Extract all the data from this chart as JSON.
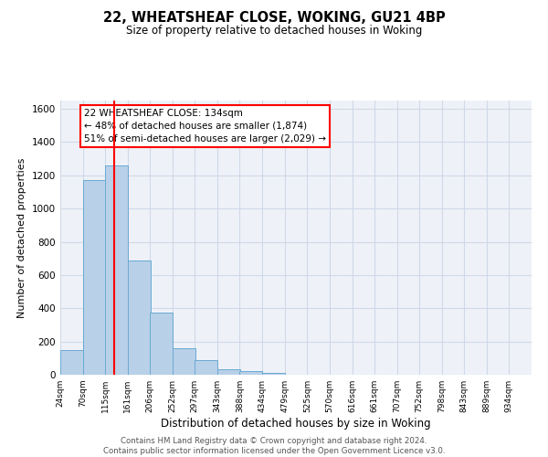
{
  "title": "22, WHEATSHEAF CLOSE, WOKING, GU21 4BP",
  "subtitle": "Size of property relative to detached houses in Woking",
  "xlabel": "Distribution of detached houses by size in Woking",
  "ylabel": "Number of detached properties",
  "footer_line1": "Contains HM Land Registry data © Crown copyright and database right 2024.",
  "footer_line2": "Contains public sector information licensed under the Open Government Licence v3.0.",
  "bin_edges": [
    24,
    70,
    115,
    161,
    206,
    252,
    297,
    343,
    388,
    434,
    479,
    525,
    570,
    616,
    661,
    707,
    752,
    798,
    843,
    889,
    934
  ],
  "bar_heights": [
    150,
    1170,
    1260,
    690,
    375,
    160,
    90,
    35,
    20,
    10,
    0,
    0,
    0,
    0,
    0,
    0,
    0,
    0,
    0,
    0
  ],
  "bar_color": "#b8d0e8",
  "bar_edgecolor": "#6aaad4",
  "grid_color": "#d0d8e8",
  "background_color": "#eef2f8",
  "red_line_x": 134,
  "annotation_line1": "22 WHEATSHEAF CLOSE: 134sqm",
  "annotation_line2": "← 48% of detached houses are smaller (1,874)",
  "annotation_line3": "51% of semi-detached houses are larger (2,029) →",
  "ylim": [
    0,
    1650
  ],
  "yticks": [
    0,
    200,
    400,
    600,
    800,
    1000,
    1200,
    1400,
    1600
  ],
  "xtick_labels": [
    "24sqm",
    "70sqm",
    "115sqm",
    "161sqm",
    "206sqm",
    "252sqm",
    "297sqm",
    "343sqm",
    "388sqm",
    "434sqm",
    "479sqm",
    "525sqm",
    "570sqm",
    "616sqm",
    "661sqm",
    "707sqm",
    "752sqm",
    "798sqm",
    "843sqm",
    "889sqm",
    "934sqm"
  ]
}
